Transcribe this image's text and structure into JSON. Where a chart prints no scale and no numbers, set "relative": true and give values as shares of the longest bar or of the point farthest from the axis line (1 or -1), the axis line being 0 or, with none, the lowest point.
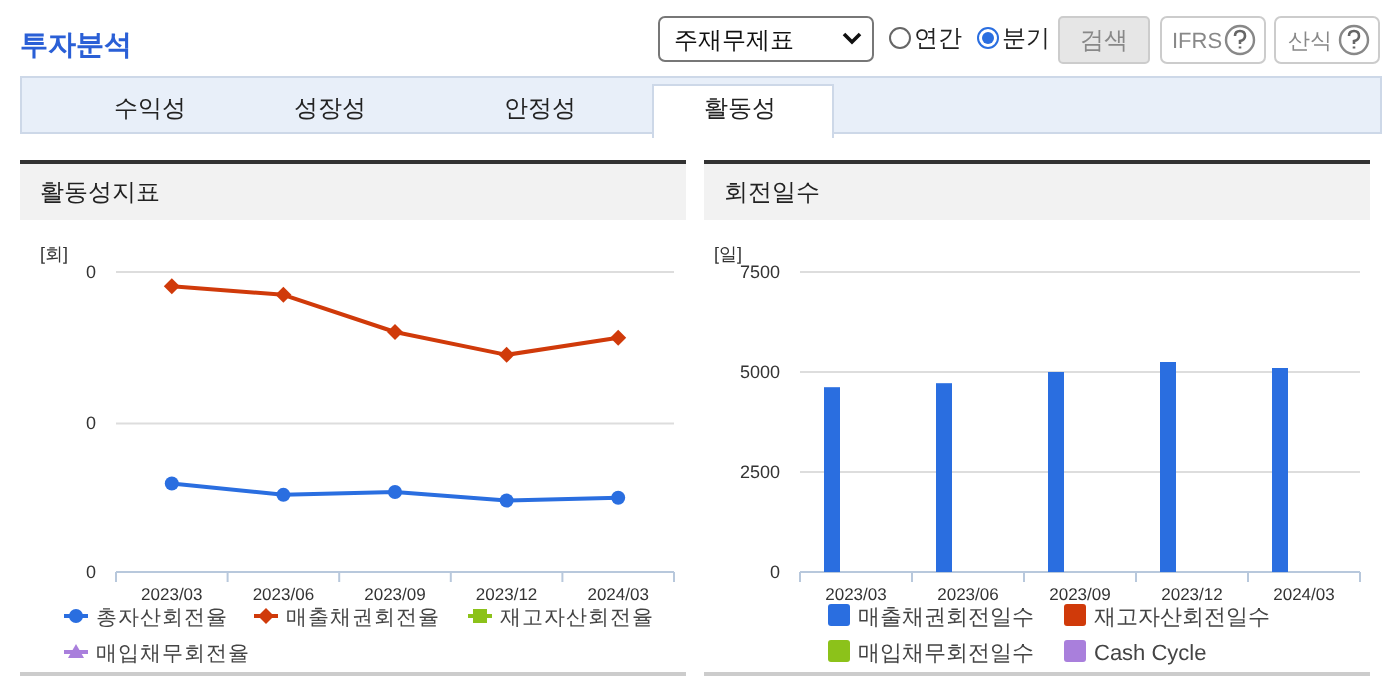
{
  "chart_data": [
    {
      "type": "line",
      "title": "활동성지표",
      "ylabel": "[회]",
      "categories": [
        "2023/03",
        "2023/06",
        "2023/09",
        "2023/12",
        "2024/03"
      ],
      "relative": true,
      "legend": "bottom",
      "line_style": "solid",
      "ref_lines": [
        {
          "axis": "y",
          "value": 0.52,
          "color": "#dddddd"
        },
        {
          "axis": "y",
          "value": 1.05,
          "color": "#dddddd"
        }
      ],
      "annotations": [
        "투자분석",
        "주재무제표",
        "연간",
        "분기",
        "검색",
        "IFRS",
        "산식",
        "수익성",
        "성장성",
        "안정성",
        "활동성",
        "0",
        "0",
        "0"
      ],
      "series": [
        {
          "name": "총자산회전율",
          "color": "#2a6ee0",
          "marker": "circle",
          "values": [
            0.31,
            0.27,
            0.28,
            0.25,
            0.26
          ]
        },
        {
          "name": "매출채권회전율",
          "color": "#d03a0a",
          "marker": "diamond",
          "values": [
            1,
            0.97,
            0.84,
            0.76,
            0.82
          ]
        },
        {
          "name": "재고자산회전율",
          "color": "#8cc21a",
          "marker": "square",
          "values": [
            null,
            null,
            null,
            null,
            null
          ]
        },
        {
          "name": "매입채무회전율",
          "color": "#a97fdc",
          "marker": "triangle",
          "values": [
            null,
            null,
            null,
            null,
            null
          ]
        }
      ]
    },
    {
      "type": "bar",
      "title": "회전일수",
      "ylabel": "[일]",
      "categories": [
        "2023/03",
        "2023/06",
        "2023/09",
        "2023/12",
        "2024/03"
      ],
      "ylim": [
        0,
        7500
      ],
      "yticks": [
        0,
        2500,
        5000,
        7500
      ],
      "grid": "y",
      "legend": "bottom",
      "series": [
        {
          "name": "매출채권회전일수",
          "color": "#2a6ee0",
          "values": [
            4620,
            4720,
            5000,
            5250,
            5100
          ]
        },
        {
          "name": "재고자산회전일수",
          "color": "#d03a0a",
          "values": [
            null,
            null,
            null,
            null,
            null
          ]
        },
        {
          "name": "매입채무회전일수",
          "color": "#8cc21a",
          "values": [
            null,
            null,
            null,
            null,
            null
          ]
        },
        {
          "name": "Cash Cycle",
          "color": "#a97fdc",
          "values": [
            null,
            null,
            null,
            null,
            null
          ]
        }
      ]
    }
  ]
}
